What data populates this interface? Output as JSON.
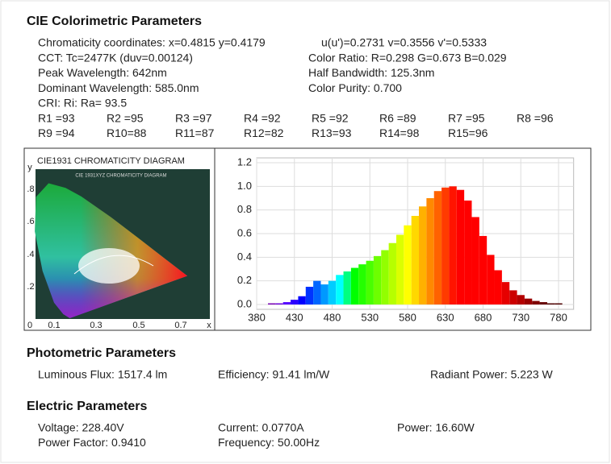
{
  "cie": {
    "title": "CIE Colorimetric Parameters",
    "lines": [
      [
        "Chromaticity coordinates: x=0.4815 y=0.4179",
        "u(u')=0.2731 v=0.3556 v'=0.5333"
      ],
      [
        "CCT: Tc=2477K (duv=0.00124)",
        "Color Ratio: R=0.298  G=0.673  B=0.029"
      ],
      [
        "Peak Wavelength: 642nm",
        "Half Bandwidth: 125.3nm"
      ],
      [
        "Dominant Wavelength: 585.0nm",
        "Color Purity: 0.700"
      ],
      [
        "CRI: Ri: Ra= 93.5"
      ]
    ],
    "ri": [
      [
        "R1 =93",
        "R2 =95",
        "R3 =97",
        "R4 =92",
        "R5 =92",
        "R6 =89",
        "R7 =95",
        "R8 =96"
      ],
      [
        "R9 =94",
        "R10=88",
        "R11=87",
        "R12=82",
        "R13=93",
        "R14=98",
        "R15=96"
      ]
    ]
  },
  "cie_diagram": {
    "title": "CIE1931 CHROMATICITY DIAGRAM",
    "inner_title": "CIE 1931XYZ CHROMATICITY DIAGRAM",
    "y_axis": "y",
    "y_labels": [
      ".8",
      ".6",
      ".4",
      ".2"
    ],
    "x_labels": [
      "0",
      "0.1",
      "0.3",
      "0.5",
      "0.7"
    ],
    "x_axis": "x"
  },
  "chart_data": {
    "type": "bar",
    "x": [
      380,
      390,
      400,
      410,
      420,
      430,
      440,
      450,
      460,
      470,
      480,
      490,
      500,
      510,
      520,
      530,
      540,
      550,
      560,
      570,
      580,
      590,
      600,
      610,
      620,
      630,
      640,
      650,
      660,
      670,
      680,
      690,
      700,
      710,
      720,
      730,
      740,
      750,
      760,
      770,
      780
    ],
    "values": [
      0,
      0,
      0.01,
      0.01,
      0.02,
      0.04,
      0.07,
      0.15,
      0.2,
      0.17,
      0.2,
      0.25,
      0.28,
      0.31,
      0.34,
      0.37,
      0.41,
      0.46,
      0.52,
      0.59,
      0.67,
      0.75,
      0.83,
      0.9,
      0.96,
      0.99,
      1.0,
      0.97,
      0.88,
      0.74,
      0.58,
      0.42,
      0.29,
      0.19,
      0.12,
      0.08,
      0.05,
      0.03,
      0.02,
      0.01,
      0.01
    ],
    "xlim": [
      380,
      800
    ],
    "xticks": [
      380,
      430,
      480,
      530,
      580,
      630,
      680,
      730,
      780
    ],
    "ylim": [
      0,
      1.2
    ],
    "yticks": [
      {
        "value": 0,
        "label": "0.0"
      },
      0.2,
      0.4,
      0.6,
      0.8,
      {
        "value": 1,
        "label": "1.0"
      },
      1.2
    ],
    "grid": true
  },
  "photometric": {
    "title": "Photometric Parameters",
    "items": [
      "Luminous Flux: 1517.4 lm",
      "Efficiency: 91.41 lm/W",
      "Radiant Power: 5.223 W"
    ]
  },
  "electric": {
    "title": "Electric Parameters",
    "items": [
      [
        "Voltage: 228.40V",
        "Current: 0.0770A",
        "Power: 16.60W"
      ],
      [
        "Power Factor: 0.9410",
        "Frequency: 50.00Hz"
      ]
    ]
  }
}
